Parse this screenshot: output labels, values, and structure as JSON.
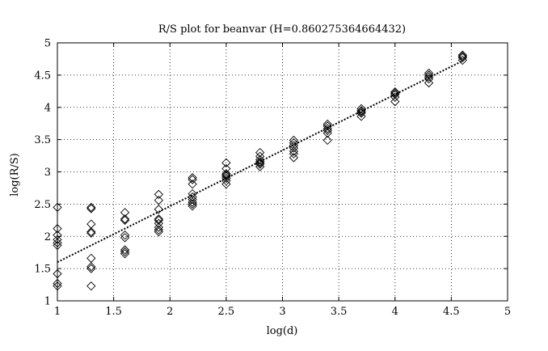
{
  "chart_data": {
    "type": "scatter",
    "title": "R/S plot for beanvar (H=0.860275364664432)",
    "xlabel": "log(d)",
    "ylabel": "log(R/S)",
    "xlim": [
      1,
      5
    ],
    "ylim": [
      1,
      5
    ],
    "xticks": [
      "1",
      "1.5",
      "2",
      "2.5",
      "3",
      "3.5",
      "4",
      "4.5",
      "5"
    ],
    "yticks": [
      "1",
      "1.5",
      "2",
      "2.5",
      "3",
      "3.5",
      "4",
      "4.5",
      "5"
    ],
    "grid": true,
    "series": [
      {
        "marker": "diamond",
        "points": [
          [
            1.0,
            2.45
          ],
          [
            1.0,
            2.12
          ],
          [
            1.0,
            2.02
          ],
          [
            1.0,
            1.95
          ],
          [
            1.0,
            1.9
          ],
          [
            1.0,
            1.86
          ],
          [
            1.0,
            1.42
          ],
          [
            1.0,
            1.27
          ],
          [
            1.0,
            1.23
          ],
          [
            1.3,
            2.45
          ],
          [
            1.3,
            2.43
          ],
          [
            1.3,
            2.19
          ],
          [
            1.3,
            2.07
          ],
          [
            1.3,
            2.05
          ],
          [
            1.3,
            1.66
          ],
          [
            1.3,
            1.53
          ],
          [
            1.3,
            1.5
          ],
          [
            1.3,
            1.23
          ],
          [
            1.6,
            2.37
          ],
          [
            1.6,
            2.27
          ],
          [
            1.6,
            2.25
          ],
          [
            1.6,
            2.02
          ],
          [
            1.6,
            1.98
          ],
          [
            1.6,
            1.79
          ],
          [
            1.6,
            1.76
          ],
          [
            1.6,
            1.73
          ],
          [
            1.9,
            2.65
          ],
          [
            1.9,
            2.56
          ],
          [
            1.9,
            2.42
          ],
          [
            1.9,
            2.27
          ],
          [
            1.9,
            2.25
          ],
          [
            1.9,
            2.2
          ],
          [
            1.9,
            2.14
          ],
          [
            1.9,
            2.1
          ],
          [
            1.9,
            2.07
          ],
          [
            2.2,
            2.91
          ],
          [
            2.2,
            2.88
          ],
          [
            2.2,
            2.81
          ],
          [
            2.2,
            2.66
          ],
          [
            2.2,
            2.61
          ],
          [
            2.2,
            2.57
          ],
          [
            2.2,
            2.53
          ],
          [
            2.2,
            2.5
          ],
          [
            2.2,
            2.47
          ],
          [
            2.5,
            3.14
          ],
          [
            2.5,
            3.05
          ],
          [
            2.5,
            2.97
          ],
          [
            2.5,
            2.95
          ],
          [
            2.5,
            2.93
          ],
          [
            2.5,
            2.9
          ],
          [
            2.5,
            2.86
          ],
          [
            2.5,
            2.81
          ],
          [
            2.8,
            3.3
          ],
          [
            2.8,
            3.24
          ],
          [
            2.8,
            3.19
          ],
          [
            2.8,
            3.16
          ],
          [
            2.8,
            3.14
          ],
          [
            2.8,
            3.12
          ],
          [
            2.8,
            3.08
          ],
          [
            3.1,
            3.49
          ],
          [
            3.1,
            3.45
          ],
          [
            3.1,
            3.41
          ],
          [
            3.1,
            3.37
          ],
          [
            3.1,
            3.32
          ],
          [
            3.1,
            3.28
          ],
          [
            3.1,
            3.22
          ],
          [
            3.4,
            3.74
          ],
          [
            3.4,
            3.71
          ],
          [
            3.4,
            3.67
          ],
          [
            3.4,
            3.64
          ],
          [
            3.4,
            3.6
          ],
          [
            3.4,
            3.49
          ],
          [
            3.7,
            3.98
          ],
          [
            3.7,
            3.95
          ],
          [
            3.7,
            3.93
          ],
          [
            3.7,
            3.91
          ],
          [
            3.7,
            3.86
          ],
          [
            4.0,
            4.24
          ],
          [
            4.0,
            4.22
          ],
          [
            4.0,
            4.2
          ],
          [
            4.0,
            4.16
          ],
          [
            4.0,
            4.09
          ],
          [
            4.3,
            4.53
          ],
          [
            4.3,
            4.5
          ],
          [
            4.3,
            4.47
          ],
          [
            4.3,
            4.44
          ],
          [
            4.3,
            4.38
          ],
          [
            4.6,
            4.81
          ],
          [
            4.6,
            4.79
          ],
          [
            4.6,
            4.77
          ],
          [
            4.6,
            4.73
          ]
        ]
      },
      {
        "type": "line",
        "style": "dotted",
        "points": [
          [
            1.0,
            1.6
          ],
          [
            4.6,
            4.72
          ]
        ]
      }
    ]
  }
}
